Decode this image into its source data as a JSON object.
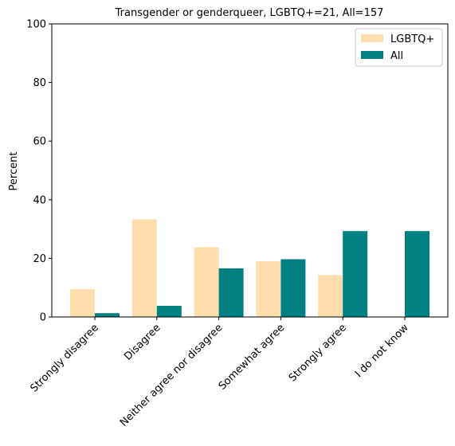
{
  "chart_data": {
    "type": "bar",
    "title": "Transgender or genderqueer, LGBTQ+=21, All=157",
    "xlabel": "",
    "ylabel": "Percent",
    "ylim": [
      0,
      100
    ],
    "yticks": [
      0,
      20,
      40,
      60,
      80,
      100
    ],
    "categories": [
      "Strongly disagree",
      "Disagree",
      "Neither agree nor disagree",
      "Somewhat agree",
      "Strongly agree",
      "I do not know"
    ],
    "series": [
      {
        "name": "LGBTQ+",
        "color": "#ffdead",
        "values": [
          9.5,
          33.3,
          23.8,
          19.0,
          14.3,
          0.0
        ]
      },
      {
        "name": "All",
        "color": "#008080",
        "values": [
          1.3,
          3.8,
          16.6,
          19.7,
          29.3,
          29.3
        ]
      }
    ],
    "legend_position": "top-right",
    "grid": false
  }
}
